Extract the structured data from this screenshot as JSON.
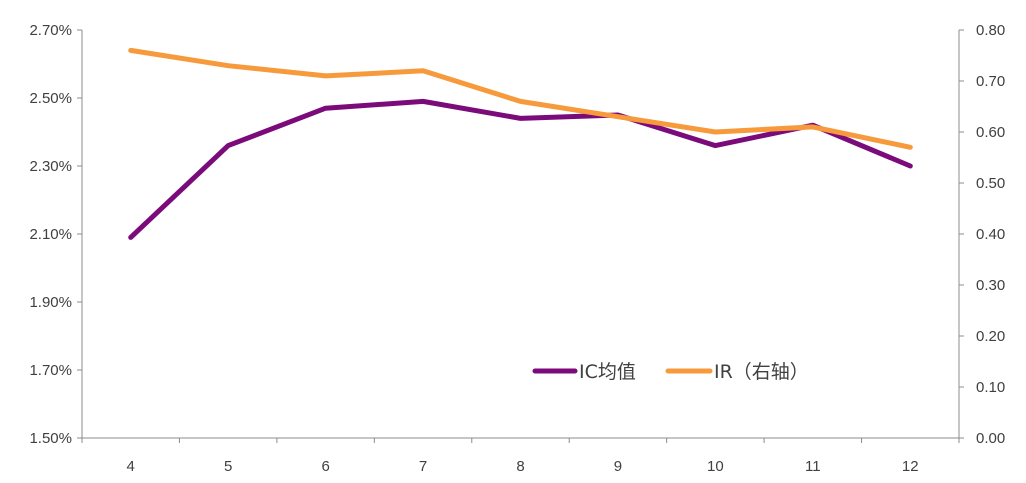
{
  "chart_data": {
    "type": "line",
    "categories": [
      "4",
      "5",
      "6",
      "7",
      "8",
      "9",
      "10",
      "11",
      "12"
    ],
    "y_left": {
      "ylim": [
        1.5,
        2.7
      ],
      "ticks": [
        1.5,
        1.7,
        1.9,
        2.1,
        2.3,
        2.5,
        2.7
      ],
      "tick_labels": [
        "1.50%",
        "1.70%",
        "1.90%",
        "2.10%",
        "2.30%",
        "2.50%",
        "2.70%"
      ]
    },
    "y_right": {
      "ylim": [
        0,
        0.8
      ],
      "ticks": [
        0,
        0.1,
        0.2,
        0.3,
        0.4,
        0.5,
        0.6,
        0.7,
        0.8
      ],
      "tick_labels": [
        "0.00",
        "0.10",
        "0.20",
        "0.30",
        "0.40",
        "0.50",
        "0.60",
        "0.70",
        "0.80"
      ]
    },
    "series": [
      {
        "name": "IC均值",
        "axis": "left",
        "color": "#7B0A7B",
        "values": [
          2.09,
          2.36,
          2.47,
          2.49,
          2.44,
          2.45,
          2.36,
          2.42,
          2.3
        ]
      },
      {
        "name": "IR（右轴）",
        "axis": "right",
        "color": "#F79A3C",
        "values": [
          0.76,
          0.73,
          0.71,
          0.72,
          0.66,
          0.63,
          0.6,
          0.61,
          0.57
        ]
      }
    ],
    "legend": "inside-bottom-right",
    "grid": false
  }
}
